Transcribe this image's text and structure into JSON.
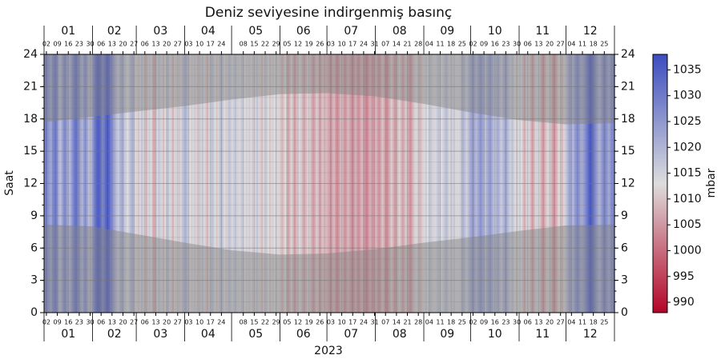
{
  "chart_data": {
    "type": "heatmap",
    "title": "Deniz seviyesine indirgenmiş basınç",
    "xlabel": "2023",
    "ylabel": "Saat",
    "colorbar_label": "mbar",
    "ylim": [
      0,
      24
    ],
    "yticks": [
      0,
      3,
      6,
      9,
      12,
      15,
      18,
      21,
      24
    ],
    "xlim": [
      0,
      365
    ],
    "grid": true,
    "clim": [
      988,
      1038
    ],
    "cticks": [
      990,
      995,
      1000,
      1005,
      1010,
      1015,
      1020,
      1025,
      1030,
      1035
    ],
    "colormap": [
      "#b40426",
      "#dddddd",
      "#3b4cc0"
    ],
    "months": {
      "labels": [
        "01",
        "02",
        "03",
        "04",
        "05",
        "06",
        "07",
        "08",
        "09",
        "10",
        "11",
        "12"
      ],
      "starts": [
        0,
        31,
        59,
        90,
        120,
        151,
        181,
        212,
        243,
        273,
        304,
        334,
        365
      ]
    },
    "xticks": [
      {
        "value": 1,
        "label": "02"
      },
      {
        "value": 8,
        "label": "09"
      },
      {
        "value": 15,
        "label": "16"
      },
      {
        "value": 22,
        "label": "23"
      },
      {
        "value": 29,
        "label": "30"
      },
      {
        "value": 36,
        "label": "06"
      },
      {
        "value": 43,
        "label": "13"
      },
      {
        "value": 50,
        "label": "20"
      },
      {
        "value": 57,
        "label": "27"
      },
      {
        "value": 64,
        "label": "06"
      },
      {
        "value": 71,
        "label": "13"
      },
      {
        "value": 78,
        "label": "20"
      },
      {
        "value": 85,
        "label": "27"
      },
      {
        "value": 92,
        "label": "03"
      },
      {
        "value": 99,
        "label": "10"
      },
      {
        "value": 106,
        "label": "17"
      },
      {
        "value": 113,
        "label": "24"
      },
      {
        "value": 127,
        "label": "08"
      },
      {
        "value": 134,
        "label": "15"
      },
      {
        "value": 141,
        "label": "22"
      },
      {
        "value": 148,
        "label": "29"
      },
      {
        "value": 155,
        "label": "05"
      },
      {
        "value": 162,
        "label": "12"
      },
      {
        "value": 169,
        "label": "19"
      },
      {
        "value": 176,
        "label": "26"
      },
      {
        "value": 183,
        "label": "03"
      },
      {
        "value": 190,
        "label": "10"
      },
      {
        "value": 197,
        "label": "17"
      },
      {
        "value": 204,
        "label": "24"
      },
      {
        "value": 211,
        "label": "31"
      },
      {
        "value": 218,
        "label": "07"
      },
      {
        "value": 225,
        "label": "14"
      },
      {
        "value": 232,
        "label": "21"
      },
      {
        "value": 239,
        "label": "28"
      },
      {
        "value": 246,
        "label": "04"
      },
      {
        "value": 253,
        "label": "11"
      },
      {
        "value": 260,
        "label": "18"
      },
      {
        "value": 267,
        "label": "25"
      },
      {
        "value": 274,
        "label": "02"
      },
      {
        "value": 281,
        "label": "09"
      },
      {
        "value": 288,
        "label": "16"
      },
      {
        "value": 295,
        "label": "23"
      },
      {
        "value": 302,
        "label": "30"
      },
      {
        "value": 309,
        "label": "06"
      },
      {
        "value": 316,
        "label": "13"
      },
      {
        "value": 323,
        "label": "20"
      },
      {
        "value": 330,
        "label": "27"
      },
      {
        "value": 337,
        "label": "04"
      },
      {
        "value": 344,
        "label": "11"
      },
      {
        "value": 351,
        "label": "18"
      },
      {
        "value": 358,
        "label": "25"
      }
    ],
    "values": [
      1028,
      1030,
      1026,
      1024,
      1022,
      1027,
      1029,
      1031,
      1025,
      1020,
      1018,
      1022,
      1026,
      1028,
      1024,
      1021,
      1019,
      1023,
      1027,
      1030,
      1032,
      1029,
      1025,
      1022,
      1020,
      1024,
      1027,
      1023,
      1019,
      1017,
      1021,
      1026,
      1030,
      1033,
      1035,
      1034,
      1031,
      1028,
      1030,
      1033,
      1036,
      1034,
      1030,
      1027,
      1024,
      1021,
      1018,
      1016,
      1019,
      1022,
      1020,
      1017,
      1015,
      1013,
      1016,
      1019,
      1021,
      1018,
      1014,
      1012,
      1010,
      1014,
      1017,
      1015,
      1011,
      1008,
      1012,
      1016,
      1013,
      1009,
      1006,
      1010,
      1014,
      1017,
      1015,
      1012,
      1009,
      1013,
      1016,
      1018,
      1014,
      1011,
      1008,
      1012,
      1015,
      1013,
      1010,
      1014,
      1017,
      1019,
      1021,
      1018,
      1015,
      1013,
      1011,
      1014,
      1016,
      1012,
      1009,
      1013,
      1015,
      1017,
      1014,
      1011,
      1008,
      1012,
      1015,
      1018,
      1016,
      1013,
      1010,
      1014,
      1017,
      1019,
      1016,
      1013,
      1011,
      1015,
      1018,
      1016,
      1014,
      1016,
      1018,
      1015,
      1012,
      1014,
      1017,
      1015,
      1013,
      1011,
      1014,
      1016,
      1013,
      1010,
      1012,
      1015,
      1017,
      1014,
      1011,
      1009,
      1012,
      1014,
      1016,
      1013,
      1010,
      1012,
      1015,
      1013,
      1011,
      1014,
      1012,
      1010,
      1008,
      1011,
      1013,
      1009,
      1006,
      1010,
      1012,
      1008,
      1005,
      1009,
      1012,
      1014,
      1011,
      1008,
      1006,
      1009,
      1011,
      1013,
      1010,
      1007,
      1005,
      1008,
      1011,
      1009,
      1006,
      1008,
      1010,
      1007,
      1009,
      1008,
      1006,
      1004,
      1007,
      1009,
      1006,
      1003,
      1005,
      1008,
      1010,
      1007,
      1004,
      1006,
      1009,
      1007,
      1005,
      1003,
      1006,
      1008,
      1005,
      1004,
      1007,
      1009,
      1006,
      1004,
      1002,
      1005,
      1008,
      1006,
      1004,
      1007,
      1009,
      1006,
      1004,
      1007,
      1010,
      1008,
      1005,
      1003,
      1006,
      1009,
      1011,
      1008,
      1005,
      1007,
      1010,
      1012,
      1009,
      1006,
      1008,
      1011,
      1009,
      1006,
      1004,
      1007,
      1010,
      1012,
      1014,
      1011,
      1008,
      1010,
      1012,
      1014,
      1016,
      1013,
      1015,
      1017,
      1015,
      1012,
      1014,
      1016,
      1018,
      1015,
      1013,
      1015,
      1017,
      1019,
      1016,
      1014,
      1012,
      1015,
      1017,
      1014,
      1012,
      1014,
      1016,
      1018,
      1020,
      1017,
      1015,
      1018,
      1021,
      1023,
      1025,
      1022,
      1019,
      1021,
      1024,
      1026,
      1023,
      1020,
      1018,
      1021,
      1023,
      1025,
      1022,
      1019,
      1017,
      1020,
      1022,
      1019,
      1016,
      1018,
      1021,
      1023,
      1020,
      1017,
      1015,
      1018,
      1016,
      1013,
      1011,
      1014,
      1016,
      1013,
      1010,
      1007,
      1011,
      1014,
      1012,
      1009,
      1005,
      1008,
      1012,
      1015,
      1013,
      1010,
      1007,
      1004,
      1008,
      1011,
      1014,
      1012,
      1009,
      1006,
      1003,
      1007,
      1010,
      1013,
      1011,
      1008,
      1012,
      1015,
      1018,
      1021,
      1024,
      1022,
      1019,
      1023,
      1026,
      1028,
      1025,
      1022,
      1020,
      1024,
      1027,
      1030,
      1033,
      1036,
      1034,
      1031,
      1028,
      1025,
      1022,
      1020,
      1023,
      1026,
      1029,
      1027,
      1024,
      1022,
      1025,
      1028,
      1026
    ],
    "night": {
      "x": [
        0,
        31,
        59,
        90,
        120,
        151,
        181,
        212,
        243,
        273,
        304,
        334,
        365
      ],
      "sunrise": [
        8.2,
        8.0,
        7.3,
        6.5,
        5.8,
        5.4,
        5.5,
        5.9,
        6.5,
        7.0,
        7.6,
        8.1,
        8.2
      ],
      "sunset": [
        17.7,
        18.2,
        18.7,
        19.2,
        19.8,
        20.3,
        20.4,
        20.1,
        19.4,
        18.6,
        17.9,
        17.5,
        17.6
      ],
      "color": "#808080"
    }
  }
}
